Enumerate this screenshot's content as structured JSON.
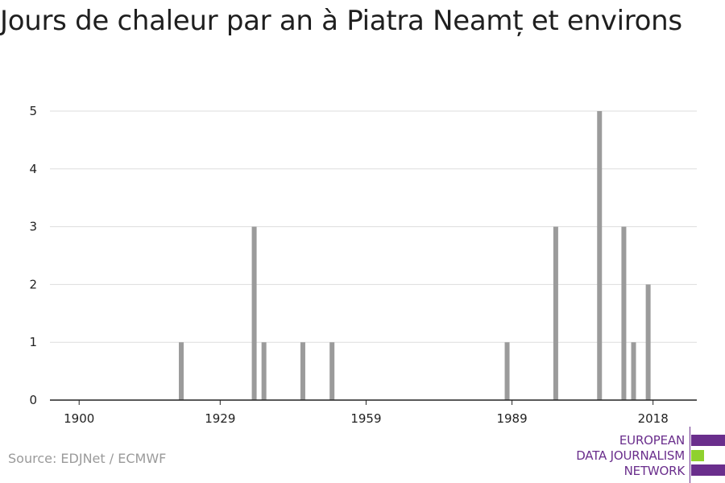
{
  "title": "Jours de chaleur par an à Piatra Neamț et environs",
  "source": "Source: EDJNet / ECMWF",
  "logo": {
    "lines": [
      "EUROPEAN",
      "DATA JOURNALISM",
      "NETWORK"
    ],
    "colors": {
      "purple": "#6a2e8c",
      "green": "#8fd12e"
    }
  },
  "colors": {
    "bar": "#9b9b9b",
    "grid": "#dddddd",
    "axis": "#222222"
  },
  "chart_data": {
    "type": "bar",
    "x": [
      1921,
      1936,
      1938,
      1946,
      1952,
      1988,
      1998,
      2007,
      2012,
      2014,
      2017
    ],
    "values": [
      1,
      3,
      1,
      1,
      1,
      1,
      3,
      5,
      3,
      1,
      2
    ],
    "xticks": [
      1900,
      1929,
      1959,
      1989,
      2018
    ],
    "yticks": [
      0,
      1,
      2,
      3,
      4,
      5
    ],
    "xlim": [
      1894,
      2027
    ],
    "ylim": [
      0,
      5
    ],
    "xlabel": "",
    "ylabel": "",
    "grid": true
  }
}
